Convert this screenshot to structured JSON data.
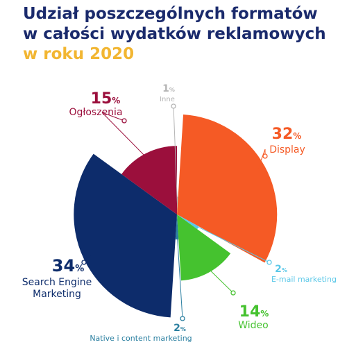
{
  "title": {
    "line1": "Udział poszczególnych formatów",
    "line2": "w całości wydatków reklamowych",
    "line3": "w roku 2020"
  },
  "chart_data": {
    "type": "pie",
    "variant": "polar-area",
    "unit": "%",
    "title": "Udział poszczególnych formatów w całości wydatków reklamowych w roku 2020",
    "slices": [
      {
        "name": "Inne",
        "value": 1,
        "color": "#b5b5b5"
      },
      {
        "name": "Display",
        "value": 32,
        "color": "#f55a25"
      },
      {
        "name": "E-mail marketing",
        "value": 2,
        "color": "#5bc8e8"
      },
      {
        "name": "Wideo",
        "value": 14,
        "color": "#45c22f"
      },
      {
        "name": "Native i content marketing",
        "value": 2,
        "color": "#2a7fa0"
      },
      {
        "name": "Search Engine Marketing",
        "value": 34,
        "color": "#0d2c6b"
      },
      {
        "name": "Ogłoszenia",
        "value": 15,
        "color": "#9b0f3c"
      }
    ]
  }
}
